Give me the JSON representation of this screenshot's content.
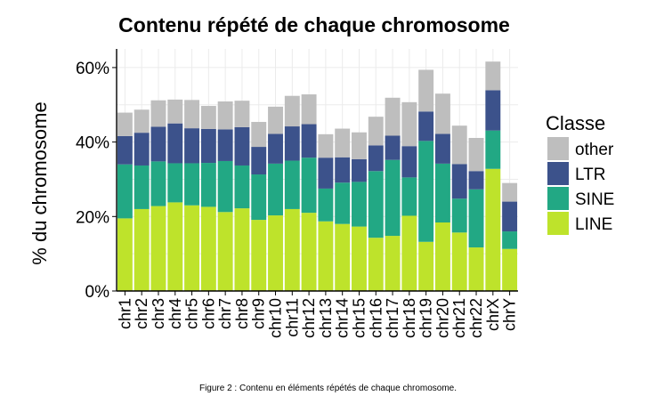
{
  "caption": "Figure 2 : Contenu en éléments répétés de chaque chromosome.",
  "chart_data": {
    "type": "bar",
    "stacked": true,
    "title": "Contenu répété de chaque chromosome",
    "xlabel": "",
    "ylabel": "% du chromosome",
    "ylim": [
      0,
      65
    ],
    "yticks": [
      0,
      20,
      40,
      60
    ],
    "ytick_labels": [
      "0%",
      "20%",
      "40%",
      "60%"
    ],
    "grid": true,
    "legend_title": "Classe",
    "legend_position": "right",
    "categories": [
      "chr1",
      "chr2",
      "chr3",
      "chr4",
      "chr5",
      "chr6",
      "chr7",
      "chr8",
      "chr9",
      "chr10",
      "chr11",
      "chr12",
      "chr13",
      "chr14",
      "chr15",
      "chr16",
      "chr17",
      "chr18",
      "chr19",
      "chr20",
      "chr21",
      "chr22",
      "chrX",
      "chrY"
    ],
    "series": [
      {
        "name": "LINE",
        "color": "#bee32b",
        "values": [
          19.5,
          22,
          22.8,
          23.8,
          23,
          22.6,
          21.2,
          22.2,
          19.1,
          20.3,
          22,
          21,
          18.7,
          18,
          17.3,
          14.3,
          14.8,
          20.2,
          13.2,
          18.4,
          15.7,
          11.7,
          32.8,
          11.3
        ]
      },
      {
        "name": "SINE",
        "color": "#22a884",
        "values": [
          14.5,
          11.7,
          12,
          10.5,
          11.3,
          11.8,
          13.7,
          11.5,
          12.2,
          13.9,
          13,
          14.8,
          8.8,
          11.1,
          12,
          17.9,
          20.4,
          10.3,
          27.1,
          15.8,
          9.1,
          15.6,
          10.3,
          4.7
        ]
      },
      {
        "name": "LTR",
        "color": "#3c528b",
        "values": [
          7.6,
          8.8,
          9.3,
          10.7,
          9.4,
          9.1,
          8.5,
          10.3,
          7.4,
          8,
          9.2,
          9,
          8.3,
          6.8,
          6.1,
          6.9,
          6.5,
          8.4,
          7.9,
          8,
          9.3,
          4.9,
          10.8,
          8
        ]
      },
      {
        "name": "other",
        "color": "#bebebe",
        "values": [
          6.3,
          6.2,
          7.1,
          6.4,
          7.6,
          6.2,
          7.5,
          7.1,
          6.7,
          7.3,
          8.2,
          8,
          6.3,
          7.7,
          7.2,
          7.7,
          10.2,
          11.8,
          11.2,
          10.8,
          10.3,
          8.9,
          7.7,
          5
        ]
      }
    ],
    "legend_order": [
      "other",
      "LTR",
      "SINE",
      "LINE"
    ]
  }
}
